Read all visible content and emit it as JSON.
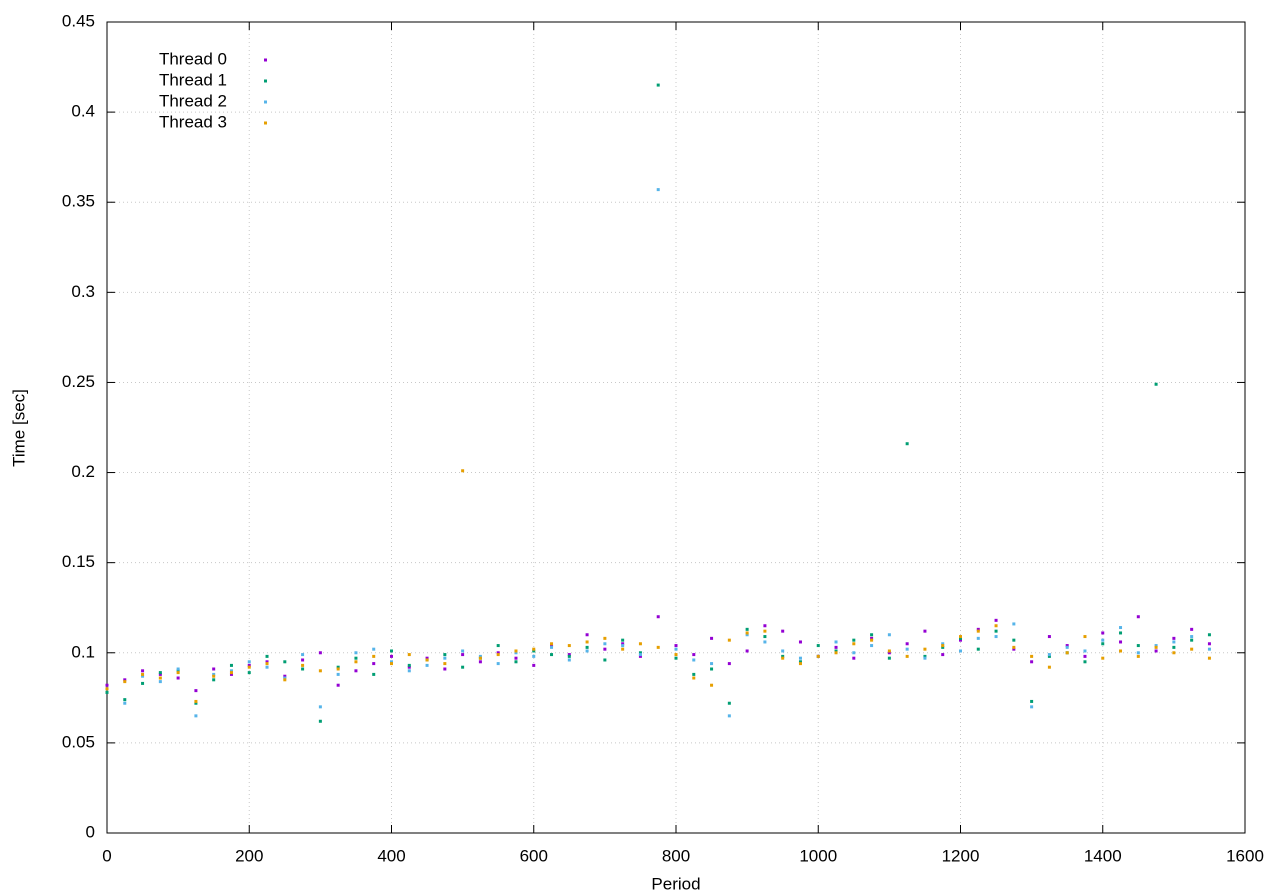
{
  "chart_data": {
    "type": "scatter",
    "xlabel": "Period",
    "ylabel": "Time [sec]",
    "xlim": [
      0,
      1600
    ],
    "ylim": [
      0,
      0.45
    ],
    "xticks": [
      0,
      200,
      400,
      600,
      800,
      1000,
      1200,
      1400,
      1600
    ],
    "yticks": [
      0,
      0.05,
      0.1,
      0.15,
      0.2,
      0.25,
      0.3,
      0.35,
      0.4,
      0.45
    ],
    "grid": true,
    "legend": "upper left",
    "x": [
      0,
      25,
      50,
      75,
      100,
      125,
      150,
      175,
      200,
      225,
      250,
      275,
      300,
      325,
      350,
      375,
      400,
      425,
      450,
      475,
      500,
      525,
      550,
      575,
      600,
      625,
      650,
      675,
      700,
      725,
      750,
      775,
      800,
      825,
      850,
      875,
      900,
      925,
      950,
      975,
      1000,
      1025,
      1050,
      1075,
      1100,
      1125,
      1150,
      1175,
      1200,
      1225,
      1250,
      1275,
      1300,
      1325,
      1350,
      1375,
      1400,
      1425,
      1450,
      1475,
      1500,
      1525,
      1550
    ],
    "series": [
      {
        "name": "Thread 0",
        "color": "#9400d3",
        "values": [
          0.082,
          0.085,
          0.09,
          0.088,
          0.086,
          0.079,
          0.091,
          0.088,
          0.093,
          0.095,
          0.087,
          0.096,
          0.1,
          0.082,
          0.09,
          0.094,
          0.098,
          0.092,
          0.097,
          0.091,
          0.099,
          0.095,
          0.1,
          0.097,
          0.093,
          0.104,
          0.099,
          0.11,
          0.102,
          0.105,
          0.098,
          0.12,
          0.104,
          0.099,
          0.108,
          0.094,
          0.101,
          0.115,
          0.112,
          0.106,
          0.098,
          0.103,
          0.097,
          0.108,
          0.1,
          0.105,
          0.112,
          0.099,
          0.107,
          0.113,
          0.118,
          0.102,
          0.095,
          0.109,
          0.104,
          0.098,
          0.111,
          0.106,
          0.12,
          0.101,
          0.108,
          0.113,
          0.105
        ]
      },
      {
        "name": "Thread 1",
        "color": "#009e73",
        "values": [
          0.078,
          0.074,
          0.083,
          0.089,
          0.09,
          0.072,
          0.085,
          0.093,
          0.089,
          0.098,
          0.095,
          0.091,
          0.062,
          0.092,
          0.097,
          0.088,
          0.101,
          0.093,
          0.096,
          0.099,
          0.092,
          0.097,
          0.104,
          0.095,
          0.101,
          0.099,
          0.098,
          0.103,
          0.096,
          0.107,
          0.1,
          0.415,
          0.097,
          0.088,
          0.091,
          0.072,
          0.113,
          0.109,
          0.098,
          0.095,
          0.104,
          0.101,
          0.107,
          0.11,
          0.097,
          0.216,
          0.098,
          0.103,
          0.108,
          0.102,
          0.112,
          0.107,
          0.073,
          0.098,
          0.1,
          0.095,
          0.105,
          0.111,
          0.104,
          0.249,
          0.103,
          0.107,
          0.11
        ]
      },
      {
        "name": "Thread 2",
        "color": "#56b4e9",
        "values": [
          0.08,
          0.072,
          0.087,
          0.084,
          0.091,
          0.065,
          0.088,
          0.09,
          0.095,
          0.092,
          0.086,
          0.099,
          0.07,
          0.088,
          0.1,
          0.102,
          0.095,
          0.09,
          0.093,
          0.097,
          0.101,
          0.098,
          0.094,
          0.1,
          0.098,
          0.103,
          0.096,
          0.101,
          0.105,
          0.104,
          0.099,
          0.357,
          0.102,
          0.096,
          0.094,
          0.065,
          0.11,
          0.106,
          0.101,
          0.097,
          0.098,
          0.106,
          0.1,
          0.104,
          0.11,
          0.102,
          0.097,
          0.105,
          0.101,
          0.108,
          0.109,
          0.116,
          0.07,
          0.099,
          0.103,
          0.101,
          0.107,
          0.114,
          0.1,
          0.104,
          0.106,
          0.109,
          0.102
        ]
      },
      {
        "name": "Thread 3",
        "color": "#e69f00",
        "values": [
          0.08,
          0.084,
          0.088,
          0.086,
          0.089,
          0.073,
          0.087,
          0.089,
          0.092,
          0.094,
          0.085,
          0.093,
          0.09,
          0.091,
          0.095,
          0.098,
          0.094,
          0.099,
          0.096,
          0.094,
          0.201,
          0.097,
          0.099,
          0.101,
          0.102,
          0.105,
          0.104,
          0.106,
          0.108,
          0.102,
          0.105,
          0.103,
          0.099,
          0.086,
          0.082,
          0.107,
          0.111,
          0.112,
          0.097,
          0.094,
          0.098,
          0.1,
          0.105,
          0.107,
          0.101,
          0.098,
          0.102,
          0.104,
          0.109,
          0.112,
          0.115,
          0.103,
          0.098,
          0.092,
          0.1,
          0.109,
          0.097,
          0.101,
          0.098,
          0.103,
          0.1,
          0.102,
          0.097
        ]
      }
    ]
  }
}
